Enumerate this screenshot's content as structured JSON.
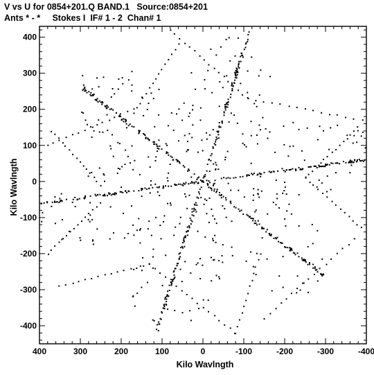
{
  "header": {
    "line1": "V vs U for 0854+201.Q BAND.1   Source:0854+201",
    "line2": "Ants * - *     Stokes I  IF# 1 - 2  Chan# 1"
  },
  "chart_data": {
    "type": "scatter",
    "title": "V vs U for 0854+201.Q BAND.1   Source:0854+201",
    "subtitle": "Ants * - *     Stokes I  IF# 1 - 2  Chan# 1",
    "xlabel": "Kilo Wavlngth",
    "ylabel": "Kilo Wavlngth",
    "xlim": [
      400,
      -400
    ],
    "ylim": [
      -450,
      430
    ],
    "x_ticks": [
      400,
      300,
      200,
      100,
      0,
      -100,
      -200,
      -300,
      -400
    ],
    "y_ticks": [
      400,
      300,
      200,
      100,
      0,
      -100,
      -200,
      -300,
      -400
    ],
    "grid": false,
    "marker_color": "#000000",
    "arms": [
      {
        "dir": [
          -0.27,
          0.99
        ],
        "len": 420
      },
      {
        "dir": [
          0.27,
          -0.99
        ],
        "len": 425
      },
      {
        "dir": [
          -0.75,
          -0.66
        ],
        "len": 395
      },
      {
        "dir": [
          0.75,
          0.66
        ],
        "len": 395
      },
      {
        "dir": [
          -0.99,
          0.15
        ],
        "len": 400
      },
      {
        "dir": [
          0.99,
          -0.15
        ],
        "len": 400
      }
    ],
    "tracks": [
      {
        "a": [
          0,
          0
        ],
        "b": [
          -108,
          395
        ],
        "n": 26
      },
      {
        "a": [
          0,
          0
        ],
        "b": [
          108,
          -395
        ],
        "n": 26
      },
      {
        "a": [
          0,
          0
        ],
        "b": [
          290,
          260
        ],
        "n": 26
      },
      {
        "a": [
          0,
          0
        ],
        "b": [
          -290,
          -260
        ],
        "n": 26
      },
      {
        "a": [
          0,
          0
        ],
        "b": [
          -395,
          60
        ],
        "n": 26
      },
      {
        "a": [
          0,
          0
        ],
        "b": [
          395,
          -60
        ],
        "n": 26
      },
      {
        "a": [
          80,
          420
        ],
        "b": [
          -110,
          230
        ],
        "n": 16
      },
      {
        "a": [
          -110,
          230
        ],
        "b": [
          -390,
          170
        ],
        "n": 14
      },
      {
        "a": [
          -380,
          150
        ],
        "b": [
          -250,
          10
        ],
        "n": 14
      },
      {
        "a": [
          -250,
          10
        ],
        "b": [
          -400,
          -140
        ],
        "n": 14
      },
      {
        "a": [
          -370,
          -160
        ],
        "b": [
          -150,
          -380
        ],
        "n": 16
      },
      {
        "a": [
          -80,
          -420
        ],
        "b": [
          -140,
          -200
        ],
        "n": 12
      },
      {
        "a": [
          -80,
          -420
        ],
        "b": [
          130,
          -230
        ],
        "n": 16
      },
      {
        "a": [
          130,
          -230
        ],
        "b": [
          350,
          -290
        ],
        "n": 14
      },
      {
        "a": [
          370,
          140
        ],
        "b": [
          250,
          -10
        ],
        "n": 14
      },
      {
        "a": [
          250,
          -60
        ],
        "b": [
          380,
          -200
        ],
        "n": 14
      },
      {
        "a": [
          170,
          190
        ],
        "b": [
          60,
          380
        ],
        "n": 14
      },
      {
        "a": [
          380,
          100
        ],
        "b": [
          170,
          200
        ],
        "n": 14
      }
    ]
  }
}
